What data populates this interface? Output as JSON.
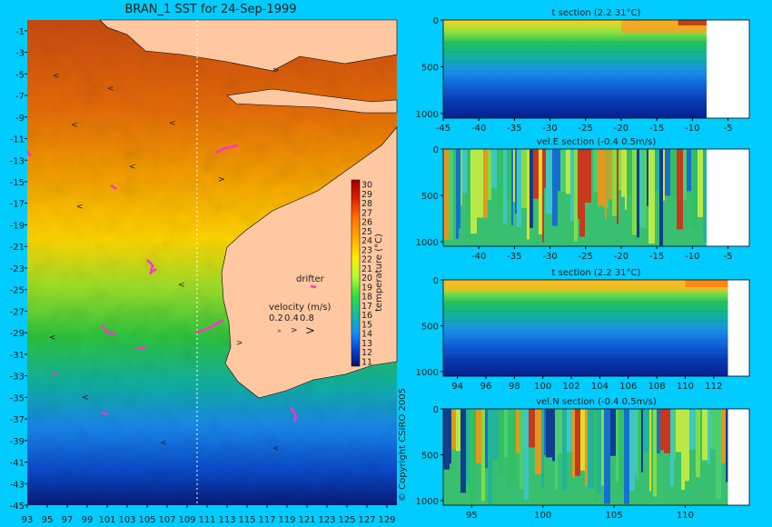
{
  "figure": {
    "colors": {
      "background": "#00ccff",
      "land": "#ffc8a0",
      "magenta": "#ff33cc"
    },
    "copyright": "© Copyright CSIRO 2005"
  },
  "chart_data": [
    {
      "type": "heatmap",
      "title": "BRAN_1 SST for 24-Sep-1999",
      "x_ticks": [
        "93",
        "95",
        "97",
        "99",
        "101",
        "103",
        "105",
        "107",
        "109",
        "111",
        "113",
        "115",
        "117",
        "119",
        "121",
        "123",
        "125",
        "127",
        "129"
      ],
      "y_ticks": [
        "-1",
        "-3",
        "-5",
        "-7",
        "-9",
        "-11",
        "-13",
        "-15",
        "-17",
        "-19",
        "-21",
        "-23",
        "-25",
        "-27",
        "-29",
        "-31",
        "-33",
        "-35",
        "-37",
        "-39",
        "-41",
        "-43",
        "-45"
      ],
      "xlim": [
        93,
        130
      ],
      "ylim": [
        -45,
        0
      ],
      "section_line_lon": 110,
      "colorbar": {
        "label": "temperature (°C)",
        "ticks": [
          "30",
          "29",
          "28",
          "27",
          "26",
          "25",
          "24",
          "23",
          "22",
          "21",
          "20",
          "19",
          "18",
          "17",
          "16",
          "15",
          "14",
          "13",
          "12",
          "11"
        ],
        "range": [
          10.5,
          30.5
        ]
      },
      "legend": {
        "drifter_label": "drifter",
        "velocity_label": "velocity (m/s)",
        "velocity_values": [
          "0.2",
          "0.4",
          "0.8"
        ]
      },
      "sst_by_latitude": [
        {
          "lat": -2,
          "temp": 29.5
        },
        {
          "lat": -8,
          "temp": 28.5
        },
        {
          "lat": -13,
          "temp": 27
        },
        {
          "lat": -17,
          "temp": 25.5
        },
        {
          "lat": -21,
          "temp": 24
        },
        {
          "lat": -25,
          "temp": 21.5
        },
        {
          "lat": -29,
          "temp": 19.5
        },
        {
          "lat": -33,
          "temp": 18
        },
        {
          "lat": -37,
          "temp": 15.5
        },
        {
          "lat": -41,
          "temp": 13.5
        },
        {
          "lat": -45,
          "temp": 11.5
        }
      ]
    },
    {
      "type": "heatmap",
      "title": "t section (2.2      31°C)",
      "x_ticks": [
        "-45",
        "-40",
        "-35",
        "-30",
        "-25",
        "-20",
        "-15",
        "-10",
        "-5"
      ],
      "y_ticks": [
        "0",
        "500",
        "1000"
      ],
      "xlim": [
        -45,
        -2
      ],
      "ylim": [
        1050,
        0
      ],
      "data_xmax": -8,
      "range": [
        2.2,
        31
      ]
    },
    {
      "type": "heatmap",
      "title": "vel.E section (-0.4      0.5m/s)",
      "x_ticks": [
        "-40",
        "-35",
        "-30",
        "-25",
        "-20",
        "-15",
        "-10",
        "-5"
      ],
      "y_ticks": [
        "0",
        "500",
        "1000"
      ],
      "xlim": [
        -45,
        -2
      ],
      "ylim": [
        1050,
        0
      ],
      "data_xmax": -8,
      "range": [
        -0.4,
        0.5
      ]
    },
    {
      "type": "heatmap",
      "title": "t section (2.2      31°C)",
      "x_ticks": [
        "94",
        "96",
        "98",
        "100",
        "102",
        "104",
        "106",
        "108",
        "110",
        "112"
      ],
      "y_ticks": [
        "0",
        "500",
        "1000"
      ],
      "xlim": [
        93,
        114.5
      ],
      "ylim": [
        1050,
        0
      ],
      "data_xmax": 113,
      "range": [
        2.2,
        31
      ]
    },
    {
      "type": "heatmap",
      "title": "vel.N section (-0.4      0.5m/s)",
      "x_ticks": [
        "95",
        "100",
        "105",
        "110"
      ],
      "y_ticks": [
        "0",
        "500",
        "1000"
      ],
      "xlim": [
        93,
        114.5
      ],
      "ylim": [
        1050,
        0
      ],
      "data_xmax": 113,
      "range": [
        -0.4,
        0.5
      ]
    }
  ]
}
